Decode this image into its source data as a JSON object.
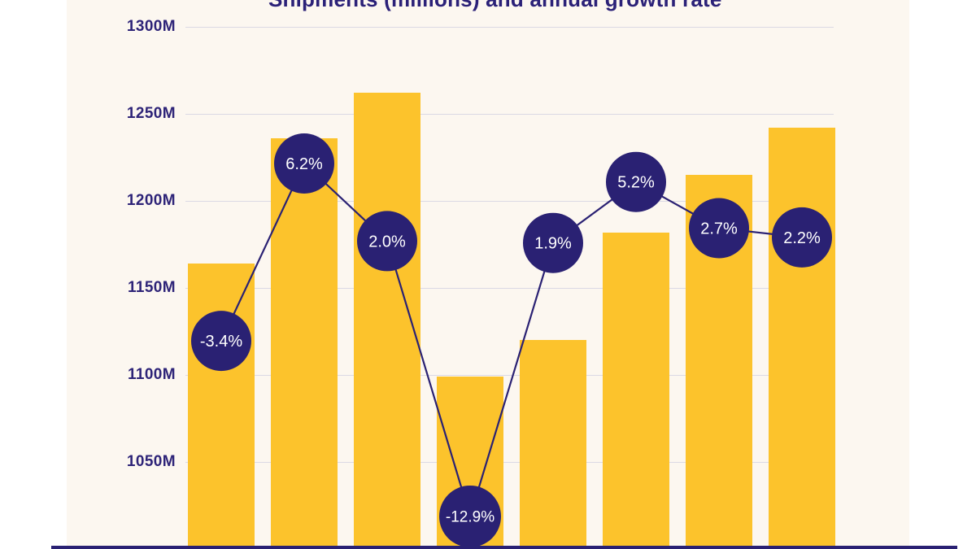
{
  "title": {
    "text": "Shipments (millions) and annual growth rate",
    "clipped_at_top": true
  },
  "colors": {
    "bar": "#FCC32C",
    "navy": "#2A2173",
    "axis_text": "#2E2478",
    "title_text": "#2B2178",
    "gridline": "#DBD9E4",
    "card_background": "#FCF7F0",
    "page_background": "#FFFFFF",
    "point_label_text": "#FFFFFF"
  },
  "chart_data": {
    "type": "bar",
    "title": "Shipments (millions) and annual growth rate",
    "x_axis": {
      "labels_visible": false
    },
    "y_axis": {
      "tick_labels": [
        "1300M",
        "1250M",
        "1200M",
        "1150M",
        "1100M",
        "1050M"
      ],
      "tick_values": [
        1300,
        1250,
        1200,
        1150,
        1100,
        1050
      ],
      "unit": "M",
      "visible_top": 1300
    },
    "grid": true,
    "legend": "none",
    "series": [
      {
        "name": "Shipments (millions)",
        "type": "bar",
        "unit": "M",
        "values": [
          1164,
          1236,
          1262,
          1099,
          1120,
          1182,
          1215,
          1242
        ]
      },
      {
        "name": "Annual growth rate",
        "type": "line",
        "unit": "%",
        "values": [
          -3.4,
          6.2,
          2.0,
          -12.9,
          1.9,
          5.2,
          2.7,
          2.2
        ],
        "labels": [
          "-3.4%",
          "6.2%",
          "2.0%",
          "-12.9%",
          "1.9%",
          "5.2%",
          "2.7%",
          "2.2%"
        ]
      }
    ]
  }
}
